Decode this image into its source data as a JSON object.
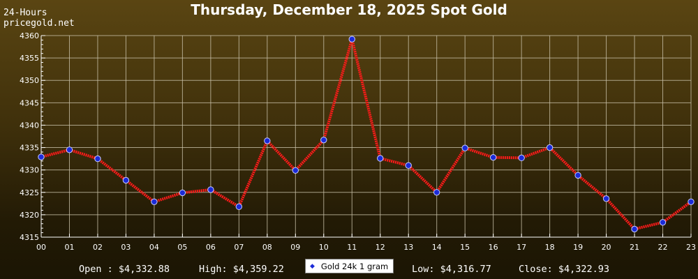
{
  "header": {
    "title": "Thursday, December 18, 2025 Spot Gold",
    "period": "24-Hours",
    "site": "pricegold.net"
  },
  "stats": {
    "open": "Open : $4,332.88",
    "high": "High: $4,359.22",
    "low": "Low: $4,316.77",
    "close": "Close: $4,322.93"
  },
  "legend": {
    "label": "Gold 24k 1 gram",
    "marker": "diamond-marker"
  },
  "colors": {
    "line": "#ff1a1a",
    "marker_fill": "#1b2bd8",
    "marker_stroke": "#c8ccff",
    "grid": "#c8c0a8",
    "axis": "#ffffff"
  },
  "chart_data": {
    "type": "line",
    "title": "Thursday, December 18, 2025 Spot Gold",
    "xlabel": "",
    "ylabel": "",
    "categories": [
      "00",
      "01",
      "02",
      "03",
      "04",
      "05",
      "06",
      "07",
      "08",
      "09",
      "10",
      "11",
      "12",
      "13",
      "14",
      "15",
      "16",
      "17",
      "18",
      "19",
      "20",
      "21",
      "22",
      "23"
    ],
    "series": [
      {
        "name": "Gold 24k 1 gram",
        "values": [
          4332.9,
          4334.5,
          4332.5,
          4327.7,
          4322.9,
          4324.9,
          4325.6,
          4321.8,
          4336.5,
          4329.9,
          4336.7,
          4359.2,
          4332.6,
          4331.0,
          4325.0,
          4334.9,
          4332.8,
          4332.7,
          4335.0,
          4328.8,
          4323.6,
          4316.8,
          4318.3,
          4322.9
        ]
      }
    ],
    "ylim": [
      4315,
      4360
    ],
    "yticks": [
      4315,
      4320,
      4325,
      4330,
      4335,
      4340,
      4345,
      4350,
      4355,
      4360
    ],
    "grid": true,
    "legend_position": "bottom-center"
  }
}
